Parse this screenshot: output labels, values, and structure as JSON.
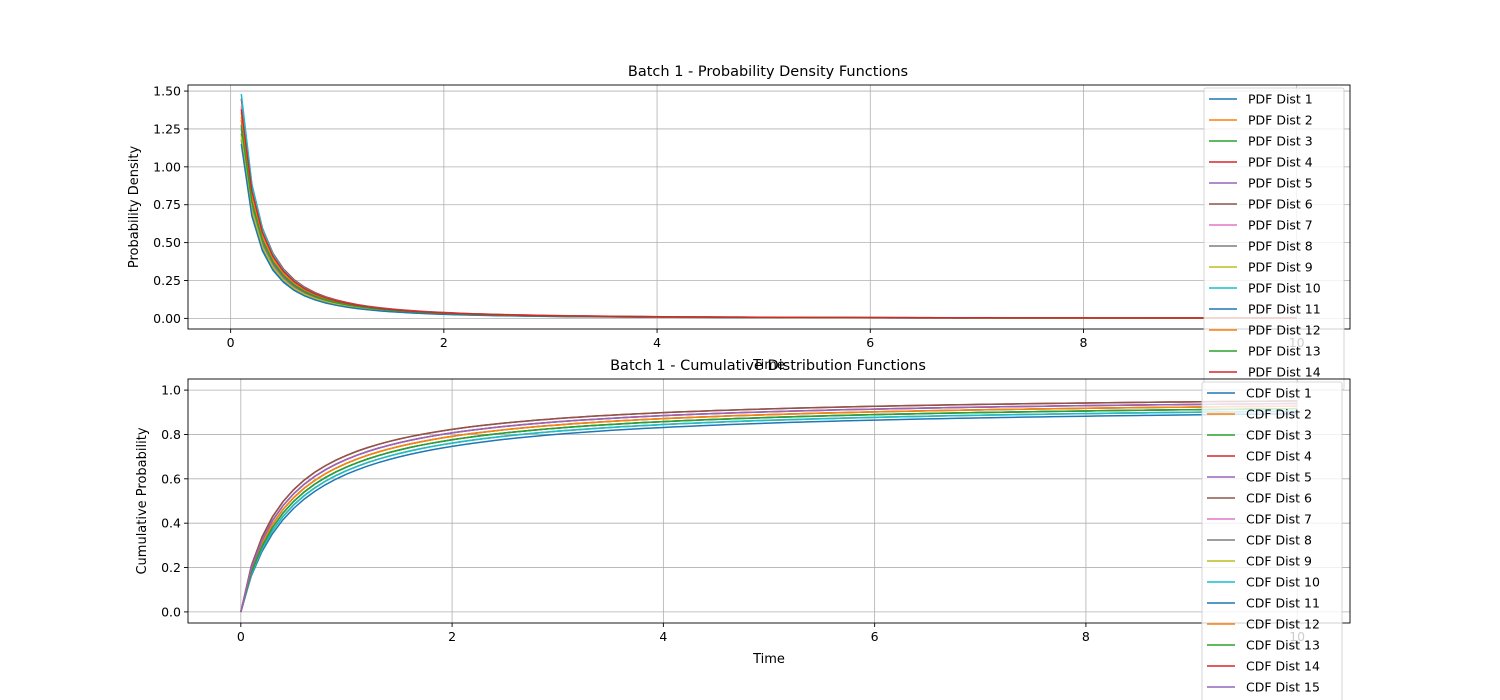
{
  "colors": {
    "tab10": [
      "#1f77b4",
      "#ff7f0e",
      "#2ca02c",
      "#d62728",
      "#9467bd",
      "#8c564b",
      "#e377c2",
      "#7f7f7f",
      "#bcbd22",
      "#17becf"
    ],
    "grid": "#b0b0b0",
    "axes": "#000000"
  },
  "chart_data": [
    {
      "type": "line",
      "title": "Batch 1 - Probability Density Functions",
      "xlabel": "Time",
      "ylabel": "Probability Density",
      "xlim": [
        -0.4,
        10.5
      ],
      "ylim": [
        -0.07,
        1.54
      ],
      "xticks": [
        0,
        2,
        4,
        6,
        8,
        10
      ],
      "yticks": [
        0.0,
        0.25,
        0.5,
        0.75,
        1.0,
        1.25,
        1.5
      ],
      "ytick_labels": [
        "0.00",
        "0.25",
        "0.50",
        "0.75",
        "1.00",
        "1.25",
        "1.50"
      ],
      "grid": true,
      "legend_position": "upper right",
      "x_range": [
        0.1,
        10
      ],
      "series": [
        {
          "name": "PDF Dist 1",
          "start": 1.18,
          "scale": 1.0
        },
        {
          "name": "PDF Dist 2",
          "start": 1.36,
          "scale": 1.03
        },
        {
          "name": "PDF Dist 3",
          "start": 1.22,
          "scale": 1.02
        },
        {
          "name": "PDF Dist 4",
          "start": 1.45,
          "scale": 1.06
        },
        {
          "name": "PDF Dist 5",
          "start": 1.28,
          "scale": 1.0
        },
        {
          "name": "PDF Dist 6",
          "start": 1.31,
          "scale": 1.01
        },
        {
          "name": "PDF Dist 7",
          "start": 1.4,
          "scale": 1.02
        },
        {
          "name": "PDF Dist 8",
          "start": 1.25,
          "scale": 0.99
        },
        {
          "name": "PDF Dist 9",
          "start": 1.2,
          "scale": 1.0
        },
        {
          "name": "PDF Dist 10",
          "start": 1.48,
          "scale": 1.02
        },
        {
          "name": "PDF Dist 11",
          "start": 1.15,
          "scale": 0.98
        },
        {
          "name": "PDF Dist 12",
          "start": 1.33,
          "scale": 1.04
        },
        {
          "name": "PDF Dist 13",
          "start": 1.27,
          "scale": 1.05
        },
        {
          "name": "PDF Dist 14",
          "start": 1.38,
          "scale": 1.06
        }
      ]
    },
    {
      "type": "line",
      "title": "Batch 1 - Cumulative Distribution Functions",
      "xlabel": "Time",
      "ylabel": "Cumulative Probability",
      "xlim": [
        -0.5,
        10.5
      ],
      "ylim": [
        -0.05,
        1.05
      ],
      "xticks": [
        0,
        2,
        4,
        6,
        8,
        10
      ],
      "yticks": [
        0.0,
        0.2,
        0.4,
        0.6,
        0.8,
        1.0
      ],
      "ytick_labels": [
        "0.0",
        "0.2",
        "0.4",
        "0.6",
        "0.8",
        "1.0"
      ],
      "grid": true,
      "legend_position": "upper right",
      "x_range": [
        0,
        10
      ],
      "series": [
        {
          "name": "CDF Dist 1",
          "final": 0.94
        },
        {
          "name": "CDF Dist 2",
          "final": 0.97
        },
        {
          "name": "CDF Dist 3",
          "final": 0.97
        },
        {
          "name": "CDF Dist 4",
          "final": 0.99
        },
        {
          "name": "CDF Dist 5",
          "final": 0.95
        },
        {
          "name": "CDF Dist 6",
          "final": 0.99
        },
        {
          "name": "CDF Dist 7",
          "final": 0.98
        },
        {
          "name": "CDF Dist 8",
          "final": 0.96
        },
        {
          "name": "CDF Dist 9",
          "final": 0.95
        },
        {
          "name": "CDF Dist 10",
          "final": 0.95
        },
        {
          "name": "CDF Dist 11",
          "final": 0.96
        },
        {
          "name": "CDF Dist 12",
          "final": 0.97
        },
        {
          "name": "CDF Dist 13",
          "final": 0.96
        },
        {
          "name": "CDF Dist 14",
          "final": 0.98
        },
        {
          "name": "CDF Dist 15",
          "final": 0.98
        }
      ]
    }
  ]
}
